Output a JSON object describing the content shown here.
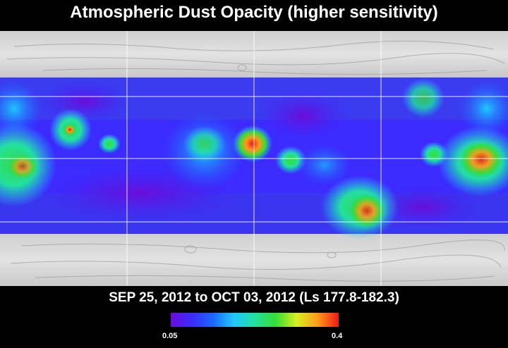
{
  "title": "Atmospheric Dust Opacity (higher sensitivity)",
  "subtitle": "SEP 25, 2012 to OCT 03, 2012 (Ls 177.8-182.3)",
  "colorbar": {
    "min_label": "0.05",
    "max_label": "0.4",
    "colors": [
      "#6a0dd8",
      "#3b2bff",
      "#1a66ff",
      "#1fc8ff",
      "#22e0a0",
      "#35dd35",
      "#d8f020",
      "#ff9a1a",
      "#f01818"
    ]
  },
  "map_colors": {
    "terrain_light": "#e0e0e0",
    "terrain_dark": "#a8a8a8",
    "grid": "#ffffff"
  },
  "chart_data": {
    "type": "heatmap",
    "value_range": [
      0.05,
      0.4
    ]
  }
}
